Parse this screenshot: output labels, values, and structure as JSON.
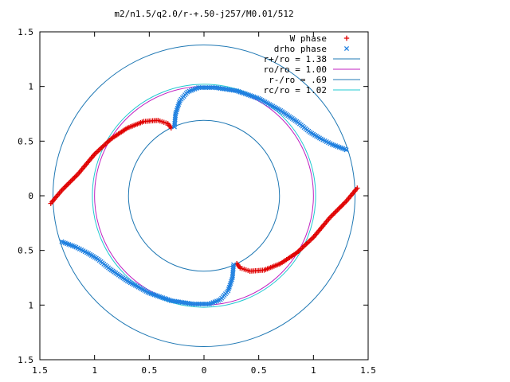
{
  "chart_data": {
    "type": "scatter",
    "title": "m2/n1.5/q2.0/r-+.50-j257/M0.01/512",
    "xlim": [
      -1.5,
      1.5
    ],
    "ylim": [
      -1.5,
      1.5
    ],
    "x_ticks": [
      -1.5,
      -1,
      -0.5,
      0,
      0.5,
      1,
      1.5
    ],
    "y_ticks": [
      -1.5,
      -1,
      -0.5,
      0,
      0.5,
      1,
      1.5
    ],
    "x_tick_labels": [
      "1.5",
      "1",
      "0.5",
      "0",
      "0.5",
      "1",
      "1.5"
    ],
    "y_tick_labels": [
      "1.5",
      "1",
      "0.5",
      "0",
      "0.5",
      "1",
      "1.5"
    ],
    "grid": false,
    "legend_position": "top-right",
    "circles": [
      {
        "label": "r+/ro = 1.38",
        "radius": 1.38,
        "color": "#1f78b4"
      },
      {
        "label": "ro/ro = 1.00",
        "radius": 1.0,
        "color": "#c020c0"
      },
      {
        "label": "r-/ro = .69",
        "radius": 0.69,
        "color": "#1f78b4"
      },
      {
        "label": "rc/ro = 1.02",
        "radius": 1.02,
        "color": "#20c8d0"
      }
    ],
    "series": [
      {
        "name": "W phase",
        "marker": "plus",
        "color": "#e00000",
        "arms": [
          [
            [
              -1.4,
              -0.07
            ],
            [
              -1.3,
              0.05
            ],
            [
              -1.15,
              0.2
            ],
            [
              -1.0,
              0.38
            ],
            [
              -0.85,
              0.52
            ],
            [
              -0.7,
              0.62
            ],
            [
              -0.55,
              0.68
            ],
            [
              -0.42,
              0.69
            ],
            [
              -0.33,
              0.66
            ],
            [
              -0.3,
              0.62
            ]
          ],
          [
            [
              1.4,
              0.07
            ],
            [
              1.3,
              -0.05
            ],
            [
              1.15,
              -0.2
            ],
            [
              1.0,
              -0.38
            ],
            [
              0.85,
              -0.52
            ],
            [
              0.7,
              -0.62
            ],
            [
              0.55,
              -0.68
            ],
            [
              0.42,
              -0.69
            ],
            [
              0.33,
              -0.66
            ],
            [
              0.3,
              -0.62
            ]
          ]
        ]
      },
      {
        "name": "drho phase",
        "marker": "cross",
        "color": "#1f80e0",
        "arms": [
          [
            [
              -0.27,
              0.63
            ],
            [
              -0.26,
              0.75
            ],
            [
              -0.22,
              0.87
            ],
            [
              -0.15,
              0.95
            ],
            [
              -0.05,
              0.99
            ],
            [
              0.1,
              0.99
            ],
            [
              0.3,
              0.96
            ],
            [
              0.5,
              0.89
            ],
            [
              0.7,
              0.78
            ],
            [
              0.86,
              0.67
            ],
            [
              0.97,
              0.58
            ],
            [
              1.07,
              0.52
            ],
            [
              1.17,
              0.47
            ],
            [
              1.3,
              0.42
            ]
          ],
          [
            [
              0.27,
              -0.63
            ],
            [
              0.26,
              -0.75
            ],
            [
              0.22,
              -0.87
            ],
            [
              0.15,
              -0.95
            ],
            [
              0.05,
              -0.99
            ],
            [
              -0.1,
              -0.99
            ],
            [
              -0.3,
              -0.96
            ],
            [
              -0.5,
              -0.89
            ],
            [
              -0.7,
              -0.78
            ],
            [
              -0.86,
              -0.67
            ],
            [
              -0.97,
              -0.58
            ],
            [
              -1.07,
              -0.52
            ],
            [
              -1.17,
              -0.47
            ],
            [
              -1.3,
              -0.42
            ]
          ]
        ]
      }
    ]
  }
}
